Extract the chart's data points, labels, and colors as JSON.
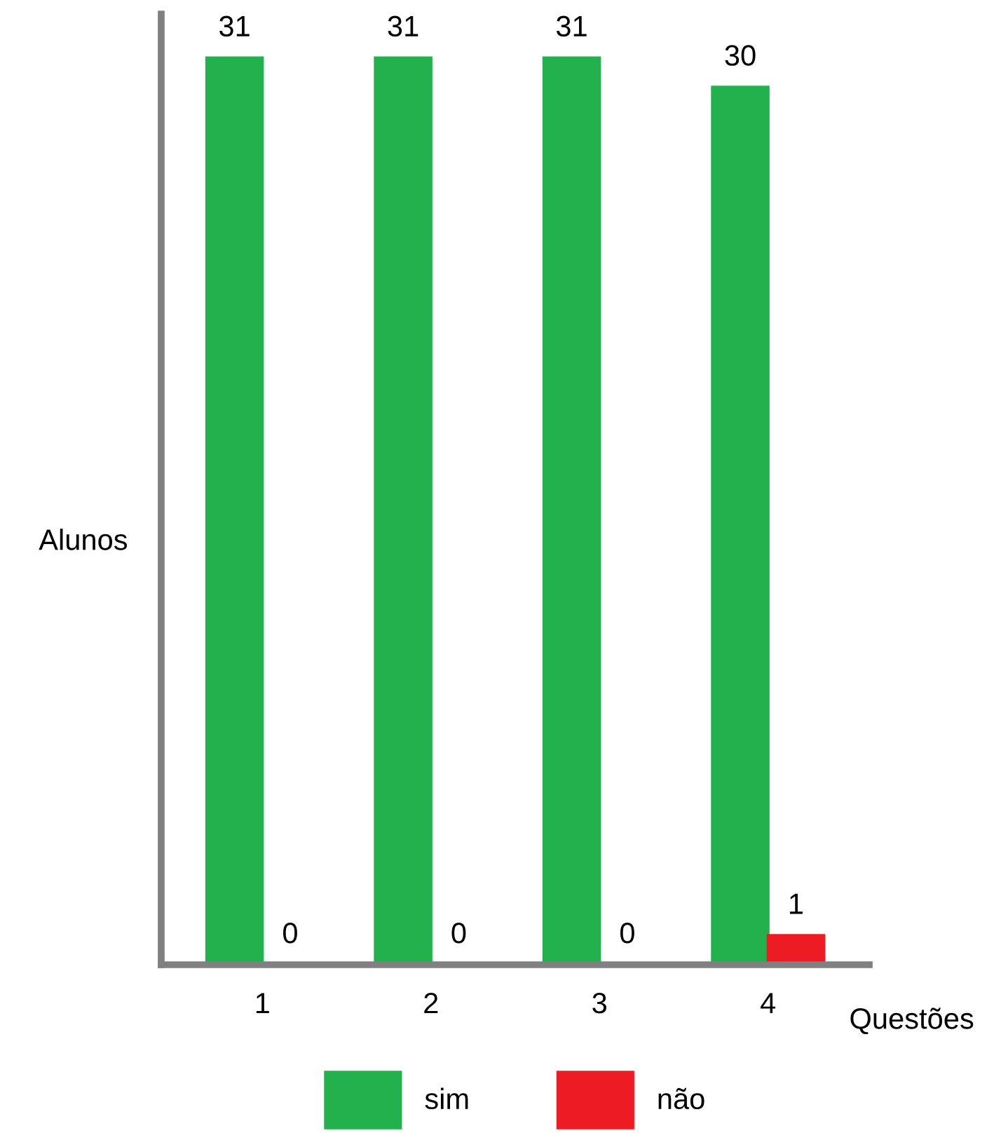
{
  "chart_data": {
    "type": "bar",
    "xlabel": "Questões",
    "ylabel": "Alunos",
    "categories": [
      "1",
      "2",
      "3",
      "4"
    ],
    "series": [
      {
        "name": "sim",
        "color": "#22b14c",
        "values": [
          31,
          31,
          31,
          30
        ]
      },
      {
        "name": "não",
        "color": "#ed1c24",
        "values": [
          0,
          0,
          0,
          1
        ]
      }
    ],
    "data_labels": true,
    "legend": "bottom",
    "grid": false,
    "tick_labels": "x"
  }
}
